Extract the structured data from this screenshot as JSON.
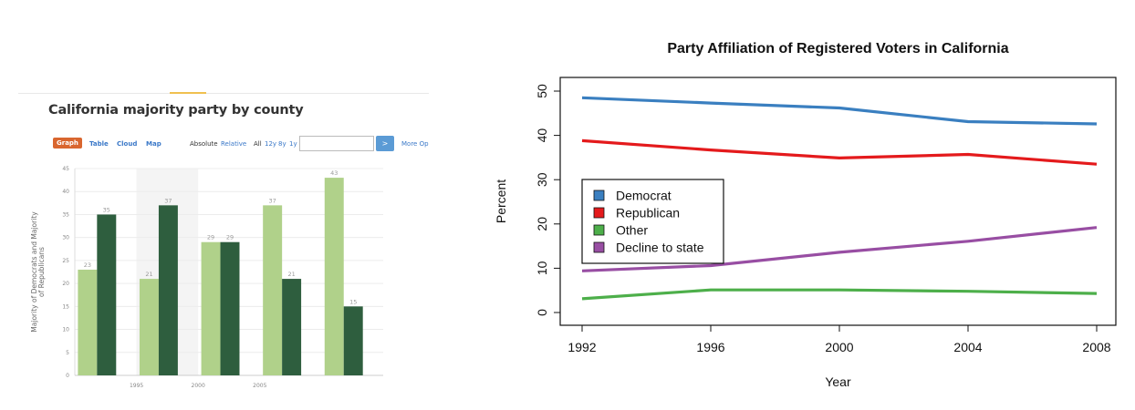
{
  "left": {
    "title": "California majority party by county",
    "toolbar": {
      "graph": "Graph",
      "table": "Table",
      "cloud": "Cloud",
      "map": "Map",
      "absolute": "Absolute",
      "relative": "Relative",
      "all": "All",
      "y12": "12y",
      "y8": "8y",
      "y1": "1y",
      "go": ">",
      "more": "More Op"
    },
    "colors": {
      "dem": "#2e5e3e",
      "rep": "#b0d18a",
      "highlight": "#f4f4f4",
      "toolbar_accent": "#d9662f"
    }
  },
  "chart_data": [
    {
      "type": "bar",
      "title": "",
      "ylabel": "Majority of Democrats and Majority of Republicans",
      "xlabel": "",
      "ylim": [
        0,
        45
      ],
      "yticks": [
        0,
        5,
        10,
        15,
        20,
        25,
        30,
        35,
        40,
        45
      ],
      "xtick_labels": [
        "1995",
        "2000",
        "2005"
      ],
      "highlight_group": 1,
      "groups": 5,
      "series": [
        {
          "values": [
            23,
            21,
            29,
            37,
            43
          ],
          "color": "#b0d18a"
        },
        {
          "values": [
            35,
            37,
            29,
            21,
            15
          ],
          "color": "#2e5e3e"
        }
      ]
    },
    {
      "type": "line",
      "title": "Party Affiliation of Registered Voters in California",
      "xlabel": "Year",
      "ylabel": "Percent",
      "x": [
        1992,
        1996,
        2000,
        2004,
        2008
      ],
      "xlim": [
        1992,
        2008
      ],
      "ylim": [
        0,
        50
      ],
      "yticks": [
        0,
        10,
        20,
        30,
        40,
        50
      ],
      "legend_position": "left",
      "series": [
        {
          "name": "Democrat",
          "values": [
            48.5,
            47.3,
            46.2,
            43.1,
            42.6
          ],
          "color": "#3a7fc0"
        },
        {
          "name": "Republican",
          "values": [
            38.8,
            36.7,
            34.9,
            35.7,
            33.5
          ],
          "color": "#e41a1c"
        },
        {
          "name": "Other",
          "values": [
            3.1,
            5.1,
            5.1,
            4.8,
            4.3
          ],
          "color": "#4daf4a"
        },
        {
          "name": "Decline to state",
          "values": [
            9.4,
            10.6,
            13.6,
            16.1,
            19.2
          ],
          "color": "#984ea3"
        }
      ]
    }
  ]
}
